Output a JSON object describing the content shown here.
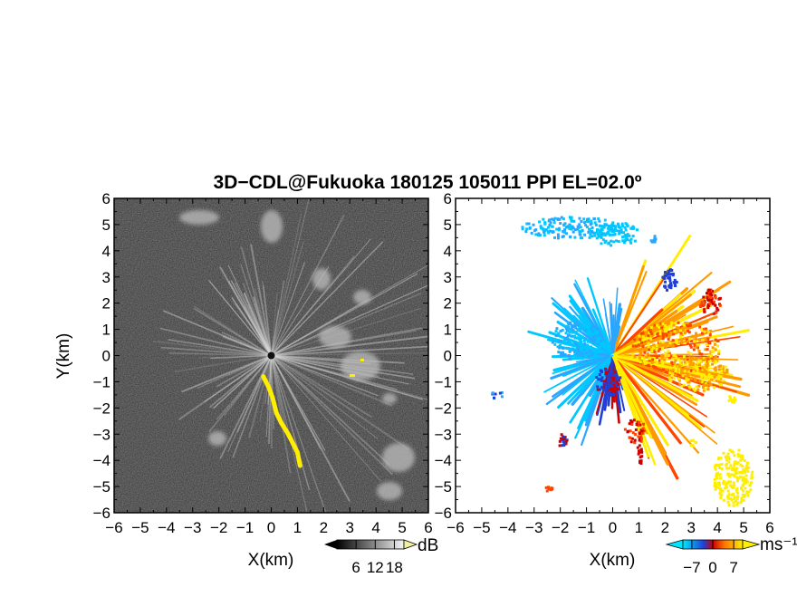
{
  "title": "3D−CDL@Fukuoka 180125 105011 PPI EL=02.0º",
  "chart_data": [
    {
      "type": "heatmap",
      "name": "reflectivity-ppi",
      "xlabel": "X(km)",
      "ylabel": "Y(km)",
      "xlim": [
        -6,
        6
      ],
      "ylim": [
        -6,
        6
      ],
      "x_ticks": [
        "−6",
        "−5",
        "−4",
        "−3",
        "−2",
        "−1",
        "0",
        "1",
        "2",
        "3",
        "4",
        "5",
        "6"
      ],
      "y_ticks": [
        "6",
        "5",
        "4",
        "3",
        "2",
        "1",
        "0",
        "−1",
        "−2",
        "−3",
        "−4",
        "−5",
        "−6"
      ],
      "background": "#2e2e2e",
      "colorbar": {
        "unit": "dB",
        "ticks": [
          "6",
          "12",
          "18"
        ],
        "range": [
          0,
          21
        ]
      },
      "highlight_color": "#ffee00",
      "highlight_path_xy_km": [
        [
          -0.3,
          -0.8
        ],
        [
          -0.1,
          -1.2
        ],
        [
          0.05,
          -1.6
        ],
        [
          0.2,
          -2.2
        ],
        [
          0.4,
          -2.6
        ],
        [
          0.65,
          -3.0
        ],
        [
          0.85,
          -3.4
        ],
        [
          1.0,
          -3.7
        ],
        [
          1.1,
          -4.2
        ]
      ]
    },
    {
      "type": "heatmap",
      "name": "velocity-ppi",
      "xlabel": "X(km)",
      "xlim": [
        -6,
        6
      ],
      "ylim": [
        -6,
        6
      ],
      "x_ticks": [
        "−6",
        "−5",
        "−4",
        "−3",
        "−2",
        "−1",
        "0",
        "1",
        "2",
        "3",
        "4",
        "5",
        "6"
      ],
      "y_ticks": [
        "6",
        "5",
        "4",
        "3",
        "2",
        "1",
        "0",
        "−1",
        "−2",
        "−3",
        "−4",
        "−5",
        "−6"
      ],
      "background": "#ffffff",
      "colorbar": {
        "unit": "ms⁻¹",
        "ticks": [
          "−7",
          "0",
          "7"
        ],
        "range": [
          -10,
          10
        ]
      },
      "palette": [
        "#00c8ff",
        "#2aa6ff",
        "#1f3fd6",
        "#cc0000",
        "#ff4400",
        "#ff9900",
        "#ffee00"
      ]
    }
  ]
}
